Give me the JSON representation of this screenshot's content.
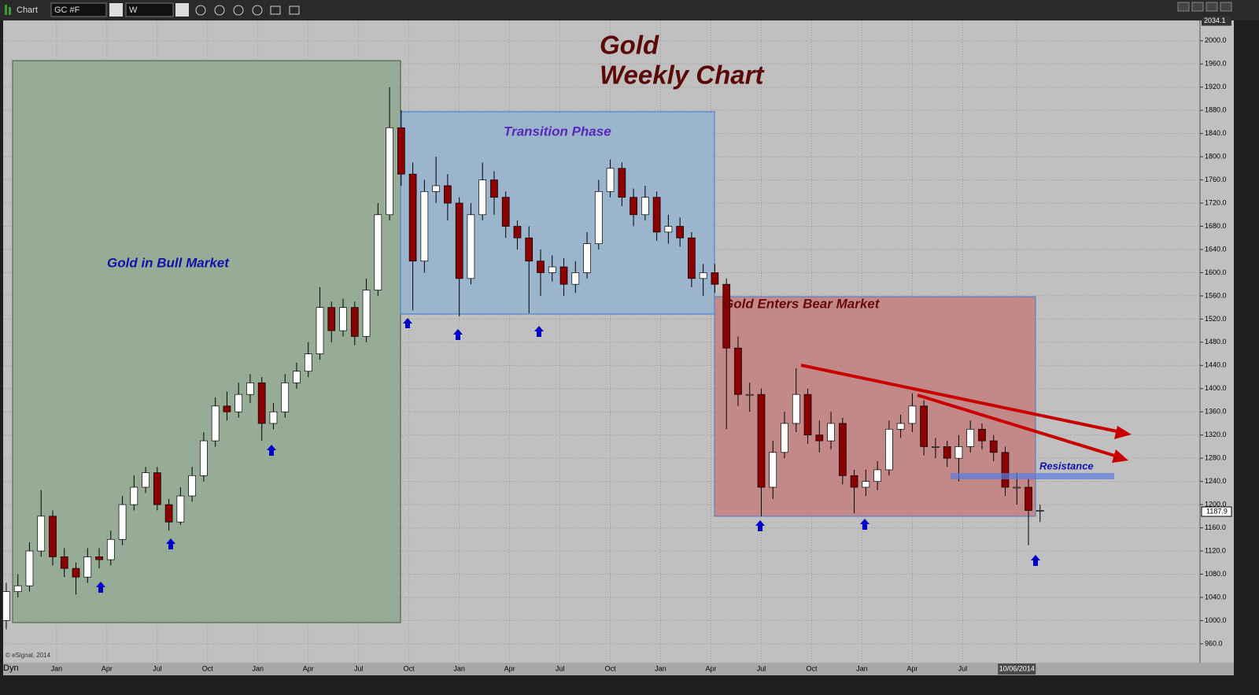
{
  "toolbar": {
    "app": "Chart",
    "symbol": "GC #F",
    "interval": "W"
  },
  "footer": {
    "mode": "Dyn",
    "copyright": "© eSignal, 2014"
  },
  "chart_data": {
    "type": "candlestick",
    "title": "Gold",
    "subtitle": "Weekly Chart",
    "annotations": {
      "bull": "Gold in Bull Market",
      "transition": "Transition Phase",
      "bear": "Gold Enters Bear Market",
      "resistance": "Resistance"
    },
    "x": [
      0,
      3,
      6,
      9,
      12,
      15,
      18,
      21,
      24,
      27,
      30,
      33,
      36,
      39,
      42,
      45,
      48,
      51,
      54,
      57,
      60,
      63,
      66,
      69,
      72,
      75,
      78,
      81,
      84,
      87,
      90,
      93,
      96,
      99,
      102,
      105,
      108,
      111,
      114,
      117,
      120,
      123,
      126,
      129,
      132,
      135,
      138,
      141,
      144,
      147,
      150,
      153,
      156,
      159,
      162,
      165,
      168,
      171,
      174,
      177,
      180,
      183,
      186,
      189,
      192,
      195,
      198,
      201,
      204,
      207,
      210,
      213,
      216,
      219,
      222,
      225,
      228,
      231,
      234,
      237,
      240,
      243,
      246,
      249,
      252,
      255,
      258,
      261,
      264,
      267
    ],
    "open": [
      1000,
      1050,
      1060,
      1120,
      1180,
      1110,
      1090,
      1075,
      1110,
      1105,
      1140,
      1200,
      1230,
      1255,
      1200,
      1170,
      1215,
      1250,
      1310,
      1370,
      1360,
      1390,
      1410,
      1340,
      1360,
      1410,
      1430,
      1460,
      1540,
      1500,
      1540,
      1490,
      1570,
      1700,
      1850,
      1770,
      1620,
      1740,
      1750,
      1720,
      1590,
      1700,
      1760,
      1730,
      1680,
      1660,
      1620,
      1600,
      1610,
      1580,
      1600,
      1650,
      1740,
      1780,
      1730,
      1700,
      1730,
      1670,
      1680,
      1660,
      1590,
      1600,
      1580,
      1470,
      1390,
      1390,
      1230,
      1290,
      1340,
      1390,
      1320,
      1310,
      1340,
      1250,
      1230,
      1240,
      1260,
      1330,
      1340,
      1370,
      1300,
      1300,
      1280,
      1300,
      1330,
      1310,
      1290,
      1230,
      1230,
      1190
    ],
    "high": [
      1065,
      1080,
      1135,
      1225,
      1190,
      1125,
      1100,
      1125,
      1125,
      1155,
      1215,
      1250,
      1265,
      1265,
      1210,
      1230,
      1265,
      1325,
      1385,
      1395,
      1410,
      1425,
      1420,
      1375,
      1425,
      1445,
      1480,
      1575,
      1550,
      1555,
      1550,
      1590,
      1720,
      1920,
      1880,
      1790,
      1760,
      1800,
      1770,
      1730,
      1720,
      1790,
      1775,
      1740,
      1690,
      1680,
      1640,
      1630,
      1625,
      1620,
      1670,
      1760,
      1795,
      1790,
      1745,
      1750,
      1740,
      1700,
      1695,
      1670,
      1615,
      1615,
      1590,
      1490,
      1410,
      1400,
      1310,
      1360,
      1435,
      1400,
      1345,
      1360,
      1350,
      1260,
      1260,
      1275,
      1345,
      1355,
      1392,
      1380,
      1315,
      1310,
      1320,
      1345,
      1340,
      1320,
      1300,
      1255,
      1245,
      1200
    ],
    "low": [
      985,
      1040,
      1050,
      1110,
      1095,
      1075,
      1045,
      1065,
      1090,
      1095,
      1130,
      1190,
      1220,
      1190,
      1155,
      1165,
      1205,
      1240,
      1300,
      1345,
      1350,
      1375,
      1310,
      1330,
      1350,
      1400,
      1420,
      1450,
      1480,
      1490,
      1475,
      1480,
      1560,
      1690,
      1750,
      1535,
      1600,
      1720,
      1690,
      1525,
      1580,
      1690,
      1700,
      1660,
      1640,
      1530,
      1560,
      1585,
      1560,
      1565,
      1590,
      1640,
      1730,
      1715,
      1680,
      1690,
      1655,
      1650,
      1645,
      1575,
      1560,
      1565,
      1330,
      1370,
      1360,
      1180,
      1210,
      1280,
      1325,
      1305,
      1290,
      1295,
      1235,
      1185,
      1215,
      1225,
      1250,
      1315,
      1325,
      1285,
      1280,
      1265,
      1240,
      1290,
      1295,
      1275,
      1215,
      1200,
      1130,
      1170
    ],
    "close": [
      1050,
      1060,
      1120,
      1180,
      1110,
      1090,
      1075,
      1110,
      1105,
      1140,
      1200,
      1230,
      1255,
      1200,
      1170,
      1215,
      1250,
      1310,
      1370,
      1360,
      1390,
      1410,
      1340,
      1360,
      1410,
      1430,
      1460,
      1540,
      1500,
      1540,
      1490,
      1570,
      1700,
      1850,
      1770,
      1620,
      1740,
      1750,
      1720,
      1590,
      1700,
      1760,
      1730,
      1680,
      1660,
      1620,
      1600,
      1610,
      1580,
      1600,
      1650,
      1740,
      1780,
      1730,
      1700,
      1730,
      1670,
      1680,
      1660,
      1590,
      1600,
      1580,
      1470,
      1390,
      1390,
      1230,
      1290,
      1340,
      1390,
      1320,
      1310,
      1340,
      1250,
      1230,
      1240,
      1260,
      1330,
      1340,
      1370,
      1300,
      1300,
      1280,
      1300,
      1330,
      1310,
      1290,
      1230,
      1230,
      1190,
      1190
    ],
    "up_color": "#ffffff",
    "down_color": "#8b0000",
    "xlim": [
      -0.8,
      308.3
    ],
    "xticks": [
      {
        "value": 13,
        "label": "Jan"
      },
      {
        "value": 26,
        "label": "Apr"
      },
      {
        "value": 39,
        "label": "Jul"
      },
      {
        "value": 52,
        "label": "Oct"
      },
      {
        "value": 65,
        "label": "Jan"
      },
      {
        "value": 78,
        "label": "Apr"
      },
      {
        "value": 91,
        "label": "Jul"
      },
      {
        "value": 104,
        "label": "Oct"
      },
      {
        "value": 117,
        "label": "Jan"
      },
      {
        "value": 130,
        "label": "Apr"
      },
      {
        "value": 143,
        "label": "Jul"
      },
      {
        "value": 156,
        "label": "Oct"
      },
      {
        "value": 169,
        "label": "Jan"
      },
      {
        "value": 182,
        "label": "Apr"
      },
      {
        "value": 195,
        "label": "Jul"
      },
      {
        "value": 208,
        "label": "Oct"
      },
      {
        "value": 221,
        "label": "Jan"
      },
      {
        "value": 234,
        "label": "Apr"
      },
      {
        "value": 247,
        "label": "Jul"
      },
      {
        "value": 261,
        "label": "10/06/2014"
      }
    ],
    "ylim": [
      930,
      2035
    ],
    "yticks": [
      {
        "value": 960,
        "label": "960.0"
      },
      {
        "value": 1000,
        "label": "1000.0"
      },
      {
        "value": 1040,
        "label": "1040.0"
      },
      {
        "value": 1080,
        "label": "1080.0"
      },
      {
        "value": 1120,
        "label": "1120.0"
      },
      {
        "value": 1160,
        "label": "1160.0"
      },
      {
        "value": 1200,
        "label": "1200.0"
      },
      {
        "value": 1240,
        "label": "1240.0"
      },
      {
        "value": 1280,
        "label": "1280.0"
      },
      {
        "value": 1320,
        "label": "1320.0"
      },
      {
        "value": 1360,
        "label": "1360.0"
      },
      {
        "value": 1400,
        "label": "1400.0"
      },
      {
        "value": 1440,
        "label": "1440.0"
      },
      {
        "value": 1480,
        "label": "1480.0"
      },
      {
        "value": 1520,
        "label": "1520.0"
      },
      {
        "value": 1560,
        "label": "1560.0"
      },
      {
        "value": 1600,
        "label": "1600.0"
      },
      {
        "value": 1640,
        "label": "1640.0"
      },
      {
        "value": 1680,
        "label": "1680.0"
      },
      {
        "value": 1720,
        "label": "1720.0"
      },
      {
        "value": 1760,
        "label": "1760.0"
      },
      {
        "value": 1800,
        "label": "1800.0"
      },
      {
        "value": 1840,
        "label": "1840.0"
      },
      {
        "value": 1880,
        "label": "1880.0"
      },
      {
        "value": 1920,
        "label": "1920.0"
      },
      {
        "value": 1960,
        "label": "1960.0"
      },
      {
        "value": 2000,
        "label": "2000.0"
      }
    ],
    "axis_top": 2034.1,
    "last_price": 1187.9,
    "grid": true
  }
}
